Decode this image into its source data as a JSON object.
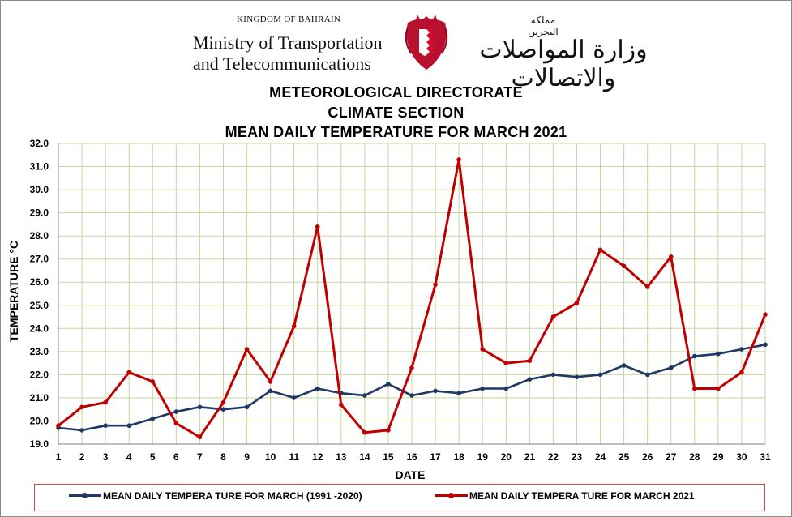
{
  "header": {
    "kingdom": "KINGDOM OF BAHRAIN",
    "ministry_line1": "Ministry of Transportation",
    "ministry_line2": "and Telecommunications",
    "arabic_kingdom": "مملكة البحرين",
    "arabic_ministry": "وزارة المواصلات والاتصالات"
  },
  "titles": {
    "line1": "METEOROLOGICAL DIRECTORATE",
    "line2": "CLIMATE SECTION",
    "line3": "MEAN DAILY TEMPERATURE FOR MARCH 2021"
  },
  "chart_data": {
    "type": "line",
    "xlabel": "DATE",
    "ylabel": "TEMPERATURE °C",
    "ylim": [
      19.0,
      32.0
    ],
    "grid": true,
    "legend_position": "bottom",
    "categories": [
      "1",
      "2",
      "3",
      "4",
      "5",
      "6",
      "7",
      "8",
      "9",
      "10",
      "11",
      "12",
      "13",
      "14",
      "15",
      "16",
      "17",
      "18",
      "19",
      "20",
      "21",
      "22",
      "23",
      "24",
      "25",
      "26",
      "27",
      "28",
      "29",
      "30",
      "31"
    ],
    "y_ticks": [
      "19.0",
      "20.0",
      "21.0",
      "22.0",
      "23.0",
      "24.0",
      "25.0",
      "26.0",
      "27.0",
      "28.0",
      "29.0",
      "30.0",
      "31.0",
      "32.0"
    ],
    "series": [
      {
        "name": "MEAN DAILY TEMPERA TURE FOR MARCH (1991 -2020)",
        "color": "#1f3864",
        "values": [
          19.7,
          19.6,
          19.8,
          19.8,
          20.1,
          20.4,
          20.6,
          20.5,
          20.6,
          21.3,
          21.0,
          21.4,
          21.2,
          21.1,
          21.6,
          21.1,
          21.3,
          21.2,
          21.4,
          21.4,
          21.8,
          22.0,
          21.9,
          22.0,
          22.4,
          22.0,
          22.3,
          22.8,
          22.9,
          23.1,
          23.3
        ]
      },
      {
        "name": "MEAN DAILY TEMPERA TURE FOR MARCH 2021",
        "color": "#c00000",
        "values": [
          19.8,
          20.6,
          20.8,
          22.1,
          21.7,
          19.9,
          19.3,
          20.8,
          23.1,
          21.7,
          24.1,
          28.4,
          20.7,
          19.5,
          19.6,
          22.3,
          25.9,
          31.3,
          23.1,
          22.5,
          22.6,
          24.5,
          25.1,
          27.4,
          26.7,
          25.8,
          27.1,
          21.4,
          21.4,
          22.1,
          24.6
        ]
      }
    ]
  }
}
